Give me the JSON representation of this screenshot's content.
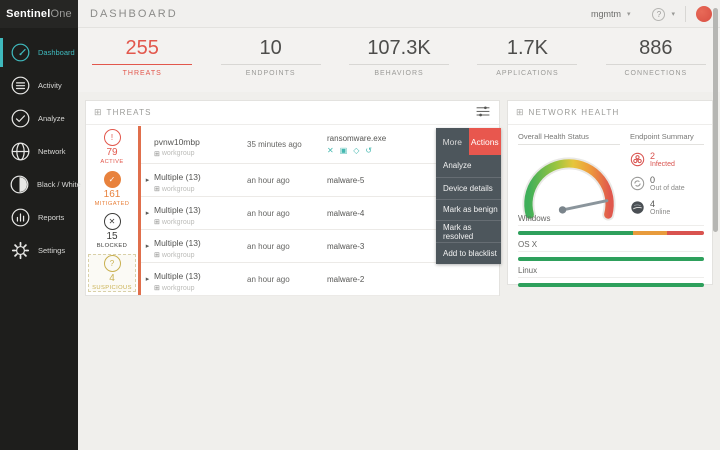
{
  "topbar": {
    "logo_bold": "Sentinel",
    "logo_light": "One",
    "title": "DASHBOARD",
    "account_label": "mgmtm",
    "help_label": "?"
  },
  "icons": {
    "caret_glyph": "▾",
    "grid_glyph": "⊞",
    "windows_glyph": "⊞",
    "expander_glyph": "▸"
  },
  "sidebar": {
    "items": [
      {
        "label": "Dashboard",
        "active": true
      },
      {
        "label": "Activity"
      },
      {
        "label": "Analyze"
      },
      {
        "label": "Network"
      },
      {
        "label": "Black / White"
      },
      {
        "label": "Reports"
      },
      {
        "label": "Settings"
      }
    ]
  },
  "stats": {
    "items": [
      {
        "value": "255",
        "label": "THREATS",
        "accent": true
      },
      {
        "value": "10",
        "label": "ENDPOINTS"
      },
      {
        "value": "107.3K",
        "label": "BEHAVIORS"
      },
      {
        "value": "1.7K",
        "label": "APPLICATIONS"
      },
      {
        "value": "886",
        "label": "CONNECTIONS"
      }
    ]
  },
  "threats": {
    "title": "THREATS",
    "summary": [
      {
        "count": "79",
        "label": "ACTIVE",
        "glyph": "!",
        "color": "#e2574c"
      },
      {
        "count": "161",
        "label": "MITIGATED",
        "glyph": "✓",
        "color": "#e8823d"
      },
      {
        "count": "15",
        "label": "BLOCKED",
        "glyph": "✕",
        "color": "#3c3c3a"
      },
      {
        "count": "4",
        "label": "SUSPICIOUS",
        "glyph": "?",
        "color": "#c9b050",
        "selected": true
      }
    ],
    "rows": [
      {
        "device": "pvnw10mbp",
        "group": "workgroup",
        "time": "35 minutes ago",
        "threat": "ransomware.exe"
      },
      {
        "device": "Multiple (13)",
        "group": "workgroup",
        "time": "an hour ago",
        "threat": "malware-5"
      },
      {
        "device": "Multiple (13)",
        "group": "workgroup",
        "time": "an hour ago",
        "threat": "malware-4"
      },
      {
        "device": "Multiple (13)",
        "group": "workgroup",
        "time": "an hour ago",
        "threat": "malware-3"
      },
      {
        "device": "Multiple (13)",
        "group": "workgroup",
        "time": "an hour ago",
        "threat": "malware-2"
      }
    ],
    "row_actions": [
      {
        "name": "kill-process",
        "glyph": "✕"
      },
      {
        "name": "quarantine",
        "glyph": "▣"
      },
      {
        "name": "remediate",
        "glyph": "◇"
      },
      {
        "name": "rollback",
        "glyph": "↺"
      }
    ],
    "menu": {
      "tab_more": "More",
      "tab_actions": "Actions",
      "items": [
        "Analyze",
        "Device details",
        "Mark as benign",
        "Mark as resolved",
        "Add to blacklist"
      ]
    }
  },
  "network_health": {
    "title": "NETWORK HEALTH",
    "gauge_title": "Overall Health Status",
    "summary_title": "Endpoint Summary",
    "endpoint_summary": [
      {
        "count": "2",
        "label": "Infected",
        "color": "#d9534f"
      },
      {
        "count": "0",
        "label": "Out of date",
        "color": "#999997"
      },
      {
        "count": "4",
        "label": "Online",
        "color": "#4a4f54"
      }
    ],
    "os_bars": [
      {
        "label": "Windows",
        "segments": [
          {
            "color": "#2ea05c",
            "pct": 62
          },
          {
            "color": "#e89b3c",
            "pct": 18
          },
          {
            "color": "#d9534f",
            "pct": 20
          }
        ]
      },
      {
        "label": "OS X",
        "segments": [
          {
            "color": "#2ea05c",
            "pct": 100
          }
        ]
      },
      {
        "label": "Linux",
        "segments": [
          {
            "color": "#2ea05c",
            "pct": 100
          }
        ]
      }
    ]
  },
  "colors": {
    "accent_teal": "#3fb9bd",
    "threat_red": "#e2574c",
    "mitigated_orange": "#e8823d",
    "suspicious_yellow": "#c9b050",
    "menu_slate": "#4d565c",
    "actions_red": "#e8574e",
    "healthy_green": "#2ea05c",
    "warning_orange": "#e89b3c",
    "critical_red": "#d9534f",
    "sidebar_dark": "#1e1e1c"
  }
}
